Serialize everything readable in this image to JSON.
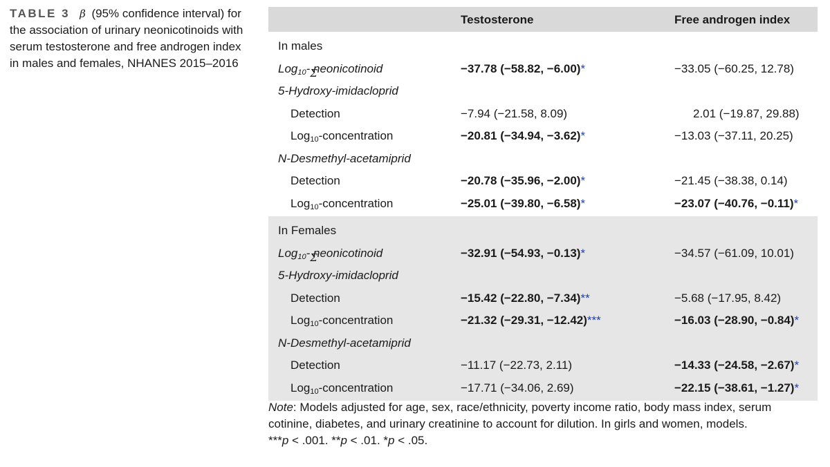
{
  "caption": {
    "label": "TABLE 3",
    "symbol": "β",
    "text": "(95% confidence interval) for the association of urinary neonicotinoids with serum testosterone and free androgen index in males and females, NHANES 2015–2016"
  },
  "table": {
    "headers": [
      "",
      "Testosterone",
      "Free androgen index"
    ],
    "groups": [
      {
        "title": "In males",
        "rows": [
          {
            "label": "Log10-Σ neonicotinoid",
            "type": "italic-main",
            "testosterone": "−37.78 (−58.82, −6.00)",
            "t_sig": "*",
            "t_bold": true,
            "fai": "−33.05 (−60.25, 12.78)",
            "f_sig": "",
            "f_bold": false
          },
          {
            "label": "5-Hydroxy-imidacloprid",
            "type": "italic-header"
          },
          {
            "label": "Detection",
            "type": "sub",
            "testosterone": "−7.94 (−21.58, 8.09)",
            "t_sig": "",
            "t_bold": false,
            "fai": "2.01 (−19.87, 29.88)",
            "f_sig": "",
            "f_bold": false
          },
          {
            "label": "Log10-concentration",
            "type": "sub",
            "testosterone": "−20.81 (−34.94, −3.62)",
            "t_sig": "*",
            "t_bold": true,
            "fai": "−13.03 (−37.11, 20.25)",
            "f_sig": "",
            "f_bold": false
          },
          {
            "label": "N-Desmethyl-acetamiprid",
            "type": "italic-header"
          },
          {
            "label": "Detection",
            "type": "sub",
            "testosterone": "−20.78 (−35.96, −2.00)",
            "t_sig": "*",
            "t_bold": true,
            "fai": "−21.45 (−38.38, 0.14)",
            "f_sig": "",
            "f_bold": false
          },
          {
            "label": "Log10-concentration",
            "type": "sub",
            "testosterone": "−25.01 (−39.80, −6.58)",
            "t_sig": "*",
            "t_bold": true,
            "fai": "−23.07 (−40.76, −0.11)",
            "f_sig": "*",
            "f_bold": true
          }
        ]
      },
      {
        "title": "In Females",
        "rows": [
          {
            "label": "Log10-Σ neonicotinoid",
            "type": "italic-main",
            "testosterone": "−32.91 (−54.93, −0.13)",
            "t_sig": "*",
            "t_bold": true,
            "fai": "−34.57 (−61.09, 10.01)",
            "f_sig": "",
            "f_bold": false
          },
          {
            "label": "5-Hydroxy-imidacloprid",
            "type": "italic-header"
          },
          {
            "label": "Detection",
            "type": "sub",
            "testosterone": "−15.42 (−22.80, −7.34)",
            "t_sig": "**",
            "t_bold": true,
            "fai": "−5.68 (−17.95, 8.42)",
            "f_sig": "",
            "f_bold": false
          },
          {
            "label": "Log10-concentration",
            "type": "sub",
            "testosterone": "−21.32 (−29.31, −12.42)",
            "t_sig": "***",
            "t_bold": true,
            "fai": "−16.03 (−28.90, −0.84)",
            "f_sig": "*",
            "f_bold": true
          },
          {
            "label": "N-Desmethyl-acetamiprid",
            "type": "italic-header"
          },
          {
            "label": "Detection",
            "type": "sub",
            "testosterone": "−11.17 (−22.73, 2.11)",
            "t_sig": "",
            "t_bold": false,
            "fai": "−14.33 (−24.58, −2.67)",
            "f_sig": "*",
            "f_bold": true
          },
          {
            "label": "Log10-concentration",
            "type": "sub",
            "testosterone": "−17.71 (−34.06, 2.69)",
            "t_sig": "",
            "t_bold": false,
            "fai": "−22.15 (−38.61, −1.27)",
            "f_sig": "*",
            "f_bold": true
          }
        ]
      }
    ]
  },
  "note": {
    "label": "Note",
    "text": ": Models adjusted for age, sex, race/ethnicity, poverty income ratio, body mass index, serum cotinine, diabetes, and urinary creatinine to account for dilution. In girls and women, models.",
    "pvals": "***p < .001. **p < .01. *p < .05."
  },
  "colors": {
    "header_bg": "#d9d9d9",
    "females_bg": "#e6e6e6",
    "significance": "#1f3fa8"
  }
}
